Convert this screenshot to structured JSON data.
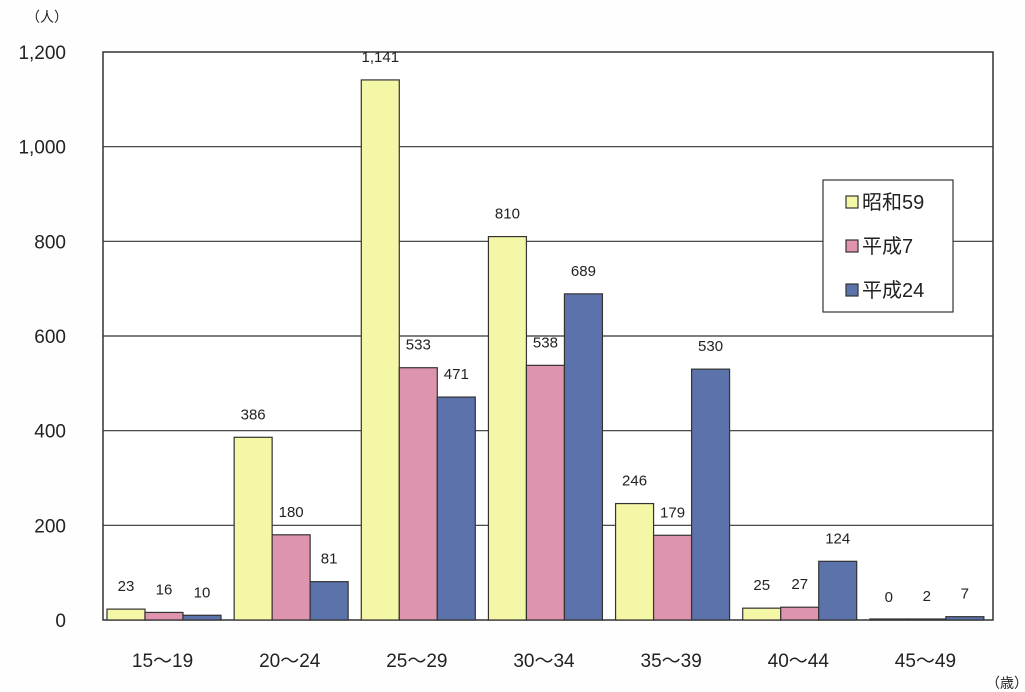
{
  "chart_data": {
    "type": "bar",
    "y_unit": "（人）",
    "x_unit": "（歳）",
    "categories": [
      "15～19",
      "20～24",
      "25～29",
      "30～34",
      "35～39",
      "40～44",
      "45～49"
    ],
    "y_ticks": [
      "0",
      "200",
      "400",
      "600",
      "800",
      "1,000",
      "1,200"
    ],
    "ylim": [
      0,
      1200
    ],
    "grid": true,
    "legend_position": "right",
    "series": [
      {
        "name": "昭和59",
        "color": "#f4f7a6",
        "values": [
          23,
          386,
          1141,
          810,
          246,
          25,
          0
        ],
        "labels": [
          "23",
          "386",
          "1,141",
          "810",
          "246",
          "25",
          "0"
        ]
      },
      {
        "name": "平成7",
        "color": "#de94ae",
        "values": [
          16,
          180,
          533,
          538,
          179,
          27,
          2
        ],
        "labels": [
          "16",
          "180",
          "533",
          "538",
          "179",
          "27",
          "2"
        ]
      },
      {
        "name": "平成24",
        "color": "#5b72ab",
        "values": [
          10,
          81,
          471,
          689,
          530,
          124,
          7
        ],
        "labels": [
          "10",
          "81",
          "471",
          "689",
          "530",
          "124",
          "7"
        ]
      }
    ]
  }
}
